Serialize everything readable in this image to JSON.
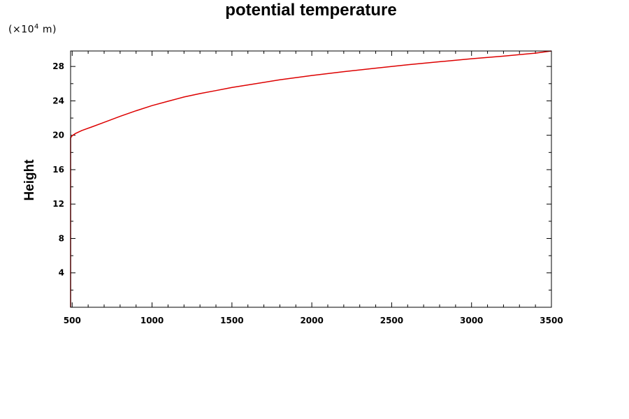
{
  "chart_data": {
    "type": "line",
    "title": "potential temperature",
    "ylabel": "Height",
    "yunit_prefix": "(×10",
    "yunit_exp": "4",
    "yunit_suffix": " m)",
    "xlim": [
      490,
      3500
    ],
    "ylim": [
      0,
      29.8
    ],
    "xticks": [
      500,
      1000,
      1500,
      2000,
      2500,
      3000,
      3500
    ],
    "yticks": [
      4,
      8,
      12,
      16,
      20,
      24,
      28
    ],
    "grid": false,
    "colors": {
      "line": "#dd0000",
      "axis": "#000000"
    },
    "series": [
      {
        "x": [
          490,
          490,
          490,
          500,
          520,
          560,
          620,
          700,
          800,
          900,
          1000,
          1100,
          1200,
          1300,
          1400,
          1500,
          1600,
          1800,
          2000,
          2200,
          2400,
          2600,
          2800,
          3000,
          3200,
          3400,
          3500
        ],
        "y": [
          0,
          10,
          19.7,
          19.95,
          20.2,
          20.55,
          20.95,
          21.5,
          22.2,
          22.85,
          23.45,
          23.95,
          24.45,
          24.85,
          25.2,
          25.55,
          25.85,
          26.45,
          26.95,
          27.4,
          27.8,
          28.2,
          28.55,
          28.9,
          29.2,
          29.55,
          29.8
        ]
      }
    ]
  }
}
